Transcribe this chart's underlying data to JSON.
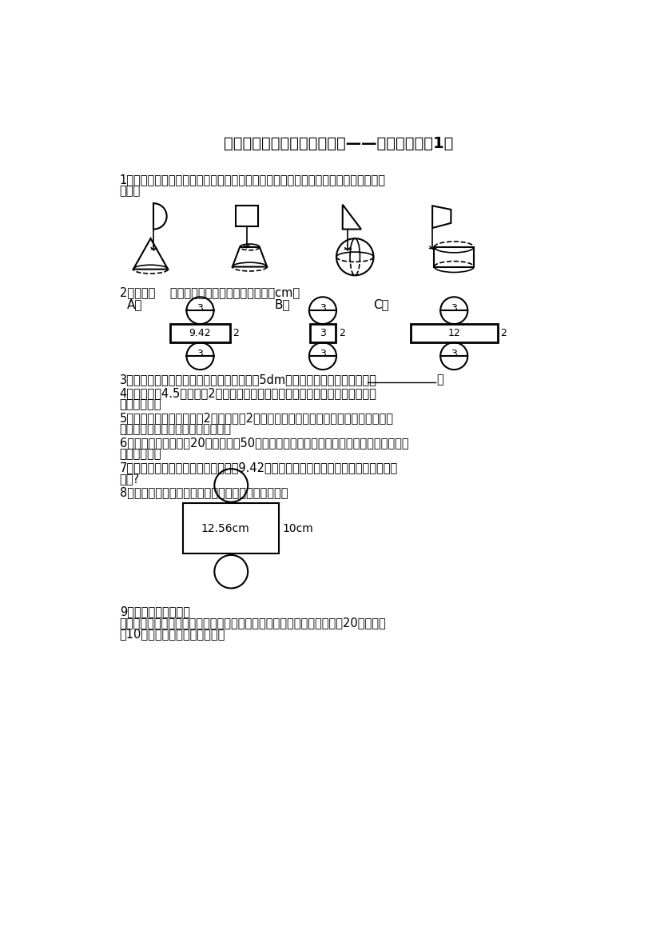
{
  "title": "小学数学六年级下册期末复习——圆柱、圆锥（1）",
  "background": "#ffffff",
  "q1_text1": "1．用纸片和小棒做成下面的小旗，快速旋转小棒，想象纸片旋转所形成的图形，再连",
  "q1_text2": "一连。",
  "q2_text": "2．下面（    ）图形是圆柱的展开图。（单位：cm）",
  "q3_text": "3．一个圆柱体的侧面是一个正方形，直径是5dm，正方形面积是＿＿＿＿＿。",
  "q4_text1": "4．用一张长4.5分米，宽2分米的长方形纸，围成一个圆柱形纸筒，它的侧面积",
  "q4_text2": "是＿＿＿＿。",
  "q5_text1": "5．一个圆柱的底面直径是2厘米，高是2厘米，侧面展开是一个＿＿＿形，它的面积是",
  "q5_text2": "＿＿＿＿＿，底面积是＿＿＿＿＿。",
  "q6_text1": "6．做一个底面直径是20厘米，高是50厘米的圆柱形通风管，至少需要＿＿＿＿＿＿平方",
  "q6_text2": "厘米的铁皮。",
  "q7_text1": "7．一个圆柱，侧面展开后是一个边长9.42分米的正方形．这个圆柱的底面直径是多少",
  "q7_text2": "分米?",
  "q8_text": "8．一个圆柱的展开图如图所示，求该圆柱的表面积。",
  "q9_text1": "9．旋转得到的圆柱。",
  "q9_text2": "如图长方形绕过中心的直线旋转一周得到一个圆柱体，已知长方形的长为20厘米，宽",
  "q9_text3": "是10厘米，求圆柱体的表面积。"
}
